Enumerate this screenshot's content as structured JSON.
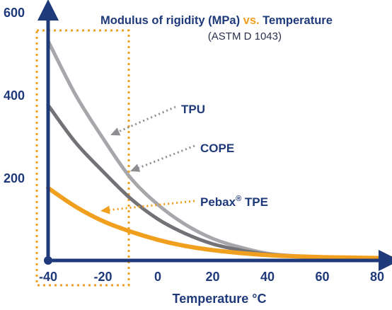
{
  "chart_data": {
    "type": "line",
    "title": {
      "part1": "Modulus of rigidity (MPa) ",
      "part2": "vs.",
      "part3": " Temperature"
    },
    "subtitle": "(ASTM D 1043)",
    "xlabel": "Temperature °C",
    "ylabel": "",
    "xlim": [
      -45,
      85
    ],
    "ylim": [
      0,
      600
    ],
    "x_ticks": [
      "-40",
      "-20",
      "0",
      "20",
      "40",
      "60",
      "80"
    ],
    "y_ticks": [
      "200",
      "400",
      "600"
    ],
    "grid": false,
    "highlight_region": [
      -43,
      -5
    ],
    "series": [
      {
        "name": "TPU",
        "label_sup": "",
        "label_rest": "",
        "color": "#a7a7ab",
        "x": [
          -40,
          -30,
          -20,
          -10,
          0,
          10,
          20,
          30,
          40,
          50,
          60,
          70,
          80,
          85
        ],
        "y": [
          530,
          400,
          295,
          200,
          135,
          87,
          53,
          32,
          17,
          11,
          8,
          7,
          6,
          6
        ]
      },
      {
        "name": "COPE",
        "label_sup": "",
        "label_rest": "",
        "color": "#737377",
        "x": [
          -40,
          -30,
          -20,
          -10,
          0,
          10,
          20,
          30,
          40,
          50,
          60,
          70,
          80,
          85
        ],
        "y": [
          375,
          285,
          215,
          150,
          100,
          65,
          40,
          25,
          15,
          10,
          8,
          7,
          6,
          6
        ]
      },
      {
        "name": "Pebax",
        "label_sup": "®",
        "label_rest": " TPE",
        "color": "#f0a01e",
        "x": [
          -40,
          -30,
          -20,
          -10,
          0,
          10,
          20,
          30,
          40,
          50,
          60,
          70,
          80,
          85
        ],
        "y": [
          175,
          130,
          95,
          70,
          50,
          35,
          25,
          18,
          13,
          10,
          8,
          7,
          6,
          6
        ]
      }
    ]
  }
}
